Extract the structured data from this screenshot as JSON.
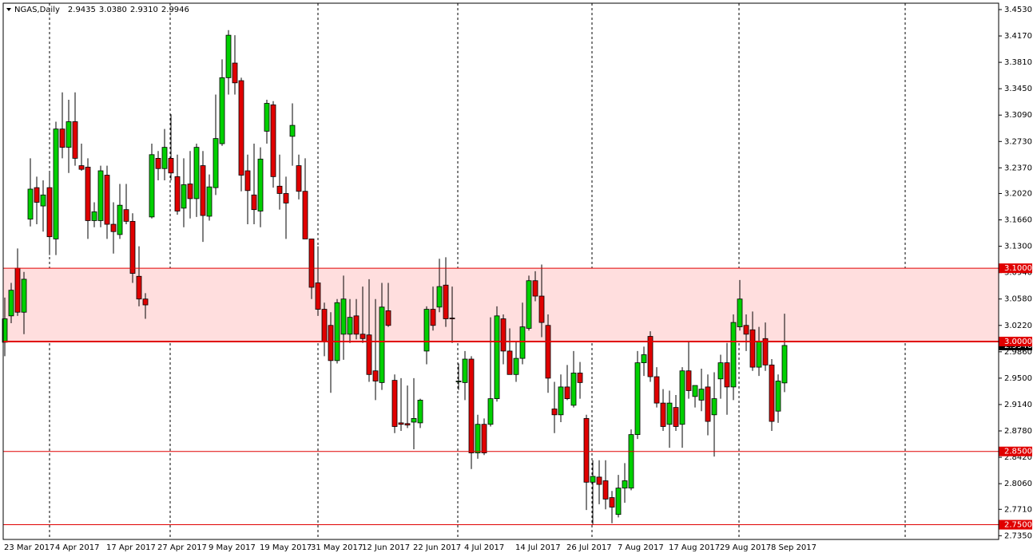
{
  "chart_data": {
    "type": "candlestick",
    "title": "NGAS,Daily",
    "ohlc_header": [
      2.9435,
      {
        "value": 3.038,
        "label": "3.0380"
      },
      {
        "value": 2.931,
        "label": "2.9310"
      },
      2.9946
    ],
    "categories": [
      "23 Mar 2017",
      null,
      null,
      null,
      null,
      null,
      null,
      null,
      "4 Apr 2017",
      null,
      null,
      null,
      null,
      null,
      null,
      null,
      "17 Apr 2017",
      null,
      null,
      null,
      null,
      null,
      null,
      null,
      "27 Apr 2017",
      null,
      null,
      null,
      null,
      null,
      null,
      null,
      "9 May 2017",
      null,
      null,
      null,
      null,
      null,
      null,
      null,
      "19 May 2017",
      null,
      null,
      null,
      null,
      null,
      null,
      null,
      "31 May 2017",
      null,
      null,
      null,
      null,
      null,
      null,
      null,
      "12 Jun 2017",
      null,
      null,
      null,
      null,
      null,
      null,
      null,
      "22 Jun 2017",
      null,
      null,
      null,
      null,
      null,
      null,
      null,
      "4 Jul 2017",
      null,
      null,
      null,
      null,
      null,
      null,
      null,
      "14 Jul 2017",
      null,
      null,
      null,
      null,
      null,
      null,
      null,
      "26 Jul 2017",
      null,
      null,
      null,
      null,
      null,
      null,
      null,
      "7 Aug 2017",
      null,
      null,
      null,
      null,
      null,
      null,
      null,
      "17 Aug 2017",
      null,
      null,
      null,
      null,
      null,
      null,
      null,
      "29 Aug 2017",
      null,
      null,
      null,
      null,
      null,
      null,
      null,
      "8 Sep 2017",
      null,
      null
    ],
    "ohlc": [
      [
        2.999,
        3.06,
        2.98,
        3.031
      ],
      [
        3.035,
        3.08,
        3.025,
        3.07
      ],
      [
        3.1,
        3.127,
        3.035,
        3.04
      ],
      [
        3.04,
        3.095,
        3.01,
        3.085
      ],
      [
        3.167,
        3.25,
        3.157,
        3.208
      ],
      [
        3.21,
        3.225,
        3.16,
        3.19
      ],
      [
        3.185,
        3.22,
        3.15,
        3.2
      ],
      [
        3.21,
        3.233,
        3.118,
        3.143
      ],
      [
        3.14,
        3.3,
        3.118,
        3.29
      ],
      [
        3.29,
        3.34,
        3.25,
        3.265
      ],
      [
        3.265,
        3.33,
        3.23,
        3.3
      ],
      [
        3.3,
        3.34,
        3.24,
        3.25
      ],
      [
        3.24,
        3.27,
        3.233,
        3.235
      ],
      [
        3.238,
        3.25,
        3.14,
        3.165
      ],
      [
        3.165,
        3.19,
        3.156,
        3.177
      ],
      [
        3.165,
        3.24,
        3.156,
        3.233
      ],
      [
        3.227,
        3.24,
        3.14,
        3.16
      ],
      [
        3.16,
        3.19,
        3.12,
        3.15
      ],
      [
        3.146,
        3.215,
        3.14,
        3.186
      ],
      [
        3.18,
        3.215,
        3.16,
        3.164
      ],
      [
        3.164,
        3.175,
        3.08,
        3.093
      ],
      [
        3.089,
        3.13,
        3.048,
        3.058
      ],
      [
        3.058,
        3.066,
        3.031,
        3.05
      ],
      [
        3.17,
        3.27,
        3.168,
        3.255
      ],
      [
        3.25,
        3.26,
        3.22,
        3.236
      ],
      [
        3.236,
        3.29,
        3.22,
        3.265
      ],
      [
        3.25,
        3.31,
        3.22,
        3.23
      ],
      [
        3.225,
        3.255,
        3.173,
        3.178
      ],
      [
        3.182,
        3.25,
        3.156,
        3.214
      ],
      [
        3.215,
        3.26,
        3.168,
        3.195
      ],
      [
        3.195,
        3.27,
        3.17,
        3.265
      ],
      [
        3.24,
        3.26,
        3.136,
        3.172
      ],
      [
        3.171,
        3.228,
        3.165,
        3.211
      ],
      [
        3.21,
        3.337,
        3.2,
        3.277
      ],
      [
        3.27,
        3.385,
        3.267,
        3.36
      ],
      [
        3.36,
        3.425,
        3.337,
        3.418
      ],
      [
        3.38,
        3.418,
        3.337,
        3.353
      ],
      [
        3.356,
        3.36,
        3.205,
        3.227
      ],
      [
        3.233,
        3.255,
        3.16,
        3.206
      ],
      [
        3.2,
        3.27,
        3.16,
        3.18
      ],
      [
        3.178,
        3.265,
        3.156,
        3.249
      ],
      [
        3.287,
        3.33,
        3.27,
        3.325
      ],
      [
        3.323,
        3.328,
        3.21,
        3.225
      ],
      [
        3.212,
        3.255,
        3.18,
        3.202
      ],
      [
        3.202,
        3.225,
        3.14,
        3.189
      ],
      [
        3.28,
        3.325,
        3.24,
        3.295
      ],
      [
        3.24,
        3.255,
        3.194,
        3.205
      ],
      [
        3.205,
        3.25,
        3.14,
        3.14
      ],
      [
        3.14,
        3.14,
        3.058,
        3.074
      ],
      [
        3.08,
        3.13,
        3.035,
        3.044
      ],
      [
        3.044,
        3.053,
        2.98,
        3.0
      ],
      [
        3.022,
        3.04,
        2.93,
        2.974
      ],
      [
        2.974,
        3.058,
        2.97,
        3.053
      ],
      [
        3.01,
        3.09,
        2.975,
        3.058
      ],
      [
        3.01,
        3.058,
        2.998,
        3.033
      ],
      [
        3.035,
        3.058,
        3.003,
        3.01
      ],
      [
        3.01,
        3.075,
        2.998,
        3.004
      ],
      [
        3.009,
        3.085,
        2.945,
        2.955
      ],
      [
        2.96,
        3.058,
        2.92,
        2.946
      ],
      [
        2.944,
        3.08,
        2.934,
        3.047
      ],
      [
        3.042,
        3.08,
        3.02,
        3.022
      ],
      [
        2.947,
        2.955,
        2.875,
        2.884
      ],
      [
        2.889,
        2.95,
        2.878,
        2.887
      ],
      [
        2.888,
        2.94,
        2.882,
        2.886
      ],
      [
        2.89,
        2.95,
        2.853,
        2.895
      ],
      [
        2.889,
        2.922,
        2.882,
        2.92
      ],
      [
        2.987,
        3.048,
        2.969,
        3.044
      ],
      [
        3.044,
        3.075,
        3.015,
        3.022
      ],
      [
        3.047,
        3.113,
        3.04,
        3.075
      ],
      [
        3.077,
        3.115,
        3.02,
        3.031
      ],
      [
        3.032,
        3.075,
        2.998,
        3.031
      ],
      [
        2.945,
        2.97,
        2.934,
        2.946
      ],
      [
        2.944,
        2.987,
        2.92,
        2.976
      ],
      [
        2.976,
        2.98,
        2.826,
        2.848
      ],
      [
        2.848,
        2.9,
        2.84,
        2.887
      ],
      [
        2.887,
        2.895,
        2.845,
        2.848
      ],
      [
        2.887,
        3.033,
        2.884,
        2.922
      ],
      [
        2.922,
        3.048,
        2.918,
        3.035
      ],
      [
        3.031,
        3.037,
        2.969,
        2.987
      ],
      [
        2.987,
        3.018,
        2.955,
        2.955
      ],
      [
        2.955,
        3.0,
        2.945,
        2.977
      ],
      [
        2.977,
        3.053,
        2.969,
        3.02
      ],
      [
        3.018,
        3.09,
        3.015,
        3.083
      ],
      [
        3.083,
        3.096,
        3.055,
        3.062
      ],
      [
        3.062,
        3.105,
        3.006,
        3.026
      ],
      [
        3.022,
        3.037,
        2.93,
        2.95
      ],
      [
        2.908,
        2.945,
        2.875,
        2.9
      ],
      [
        2.9,
        2.955,
        2.89,
        2.938
      ],
      [
        2.938,
        2.968,
        2.92,
        2.922
      ],
      [
        2.913,
        2.987,
        2.91,
        2.957
      ],
      [
        2.957,
        2.972,
        2.922,
        2.944
      ],
      [
        2.895,
        2.9,
        2.77,
        2.808
      ],
      [
        2.808,
        2.838,
        2.75,
        2.816
      ],
      [
        2.815,
        2.838,
        2.778,
        2.805
      ],
      [
        2.81,
        2.838,
        2.771,
        2.785
      ],
      [
        2.787,
        2.796,
        2.752,
        2.774
      ],
      [
        2.764,
        2.818,
        2.76,
        2.8
      ],
      [
        2.8,
        2.834,
        2.78,
        2.81
      ],
      [
        2.8,
        2.88,
        2.797,
        2.873
      ],
      [
        2.873,
        2.987,
        2.867,
        2.971
      ],
      [
        2.971,
        2.993,
        2.953,
        2.982
      ],
      [
        3.007,
        3.014,
        2.945,
        2.952
      ],
      [
        2.952,
        2.965,
        2.91,
        2.916
      ],
      [
        2.916,
        2.935,
        2.878,
        2.884
      ],
      [
        2.887,
        2.933,
        2.855,
        2.916
      ],
      [
        2.91,
        2.927,
        2.878,
        2.884
      ],
      [
        2.887,
        2.965,
        2.855,
        2.96
      ],
      [
        2.96,
        3.0,
        2.922,
        2.933
      ],
      [
        2.925,
        2.94,
        2.91,
        2.94
      ],
      [
        2.92,
        2.963,
        2.905,
        2.935
      ],
      [
        2.938,
        2.955,
        2.872,
        2.891
      ],
      [
        2.9,
        2.958,
        2.843,
        2.922
      ],
      [
        2.949,
        2.982,
        2.922,
        2.971
      ],
      [
        2.971,
        2.998,
        2.9,
        2.938
      ],
      [
        2.938,
        3.037,
        2.92,
        3.026
      ],
      [
        3.02,
        3.084,
        3.015,
        3.058
      ],
      [
        3.022,
        3.037,
        2.987,
        3.01
      ],
      [
        3.016,
        3.041,
        2.96,
        2.965
      ],
      [
        2.965,
        3.02,
        2.953,
        3.0
      ],
      [
        3.004,
        3.026,
        2.96,
        2.968
      ],
      [
        2.968,
        2.976,
        2.878,
        2.891
      ],
      [
        2.905,
        2.955,
        2.889,
        2.946
      ],
      [
        2.9435,
        3.038,
        2.931,
        2.9946
      ]
    ],
    "up_color": "#00d000",
    "down_color": "#e00000",
    "ylim": [
      2.7299,
      3.4617
    ],
    "yticks": [
      {
        "value": 3.453,
        "label": "3.4530"
      },
      {
        "value": 3.417,
        "label": "3.4170"
      },
      {
        "value": 3.381,
        "label": "3.3810"
      },
      {
        "value": 3.345,
        "label": "3.3450"
      },
      {
        "value": 3.309,
        "label": "3.3090"
      },
      {
        "value": 3.273,
        "label": "3.2730"
      },
      {
        "value": 3.237,
        "label": "3.2370"
      },
      {
        "value": 3.202,
        "label": "3.2020"
      },
      {
        "value": 3.166,
        "label": "3.1660"
      },
      {
        "value": 3.13,
        "label": "3.1300"
      },
      {
        "value": 3.094,
        "label": "3.0940"
      },
      {
        "value": 3.058,
        "label": "3.0580"
      },
      {
        "value": 3.022,
        "label": "3.0220"
      },
      {
        "value": 2.986,
        "label": "2.9860"
      },
      {
        "value": 2.95,
        "label": "2.9500"
      },
      {
        "value": 2.914,
        "label": "2.9140"
      },
      {
        "value": 2.878,
        "label": "2.8780"
      },
      {
        "value": 2.842,
        "label": "2.8420"
      },
      {
        "value": 2.806,
        "label": "2.8060"
      },
      {
        "value": 2.771,
        "label": "2.7710"
      },
      {
        "value": 2.735,
        "label": "2.7350"
      }
    ],
    "levels": [
      {
        "value": 3.1,
        "label": "3.1000"
      },
      {
        "value": 3.0,
        "label": "3.0000"
      },
      {
        "value": 2.85,
        "label": "2.8500"
      },
      {
        "value": 2.75,
        "label": "2.7500"
      }
    ]
  }
}
